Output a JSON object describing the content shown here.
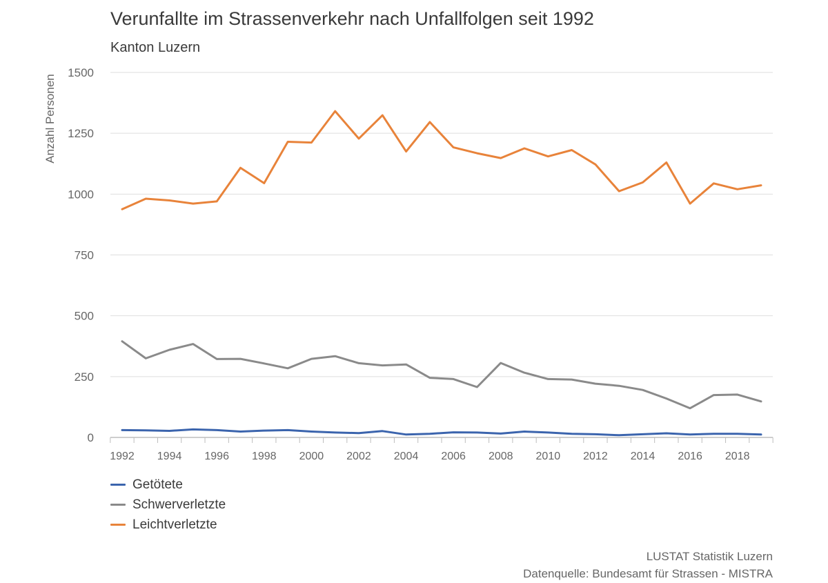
{
  "header": {
    "title": "Verunfallte im Strassenverkehr nach Unfallfolgen seit 1992",
    "subtitle": "Kanton Luzern"
  },
  "footer": {
    "source_line1": "LUSTAT Statistik Luzern",
    "source_line2": "Datenquelle: Bundesamt für Strassen - MISTRA"
  },
  "chart_data": {
    "type": "line",
    "title": "Verunfallte im Strassenverkehr nach Unfallfolgen seit 1992",
    "subtitle": "Kanton Luzern",
    "xlabel": "",
    "ylabel": "Anzahl Personen",
    "ylim": [
      0,
      1500
    ],
    "yticks": [
      0,
      250,
      500,
      750,
      1000,
      1250,
      1500
    ],
    "xticks": [
      1992,
      1994,
      1996,
      1998,
      2000,
      2002,
      2004,
      2006,
      2008,
      2010,
      2012,
      2014,
      2016,
      2018
    ],
    "grid": true,
    "legend_position": "bottom-left",
    "x": [
      1992,
      1993,
      1994,
      1995,
      1996,
      1997,
      1998,
      1999,
      2000,
      2001,
      2002,
      2003,
      2004,
      2005,
      2006,
      2007,
      2008,
      2009,
      2010,
      2011,
      2012,
      2013,
      2014,
      2015,
      2016,
      2017,
      2018,
      2019
    ],
    "series": [
      {
        "name": "Getötete",
        "color": "#3b64ad",
        "values": [
          30,
          29,
          27,
          33,
          30,
          24,
          28,
          30,
          24,
          20,
          18,
          26,
          12,
          15,
          21,
          20,
          16,
          24,
          20,
          15,
          13,
          9,
          13,
          17,
          12,
          15,
          15,
          12
        ]
      },
      {
        "name": "Schwerverletzte",
        "color": "#8a8a8a",
        "values": [
          395,
          325,
          360,
          384,
          322,
          323,
          304,
          284,
          323,
          334,
          305,
          296,
          300,
          245,
          240,
          207,
          306,
          266,
          240,
          238,
          221,
          212,
          195,
          160,
          120,
          174,
          176,
          148
        ]
      },
      {
        "name": "Leichtverletzte",
        "color": "#e8833a",
        "values": [
          938,
          981,
          974,
          961,
          970,
          1108,
          1045,
          1215,
          1212,
          1341,
          1228,
          1324,
          1175,
          1296,
          1192,
          1168,
          1148,
          1188,
          1155,
          1181,
          1122,
          1012,
          1048,
          1130,
          961,
          1044,
          1020,
          1036
        ]
      }
    ]
  }
}
